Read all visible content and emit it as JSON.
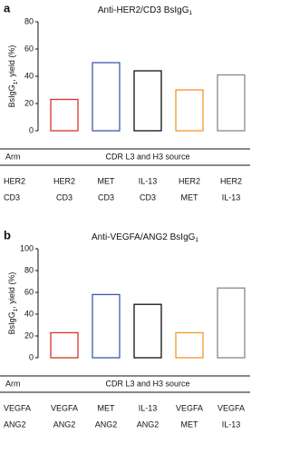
{
  "chart_data": [
    {
      "type": "bar",
      "panel": "a",
      "title": "Anti-HER2/CD3 BsIgG",
      "title_subscript": "1",
      "ylabel": "BsIgG",
      "ylabel_subscript": "1",
      "ylabel_suffix": ", yield (%)",
      "values": [
        23,
        50,
        44,
        30,
        41
      ],
      "colors": [
        "#d9342b",
        "#3a5aa8",
        "#111111",
        "#f0962e",
        "#888888"
      ],
      "ylim": [
        0,
        80
      ],
      "yticks": [
        0,
        20,
        40,
        60,
        80
      ],
      "table": {
        "header": [
          "Arm",
          "CDR L3 and H3 source"
        ],
        "rows": [
          [
            "HER2",
            "HER2",
            "MET",
            "IL-13",
            "HER2",
            "HER2"
          ],
          [
            "CD3",
            "CD3",
            "CD3",
            "CD3",
            "MET",
            "IL-13"
          ]
        ]
      }
    },
    {
      "type": "bar",
      "panel": "b",
      "title": "Anti-VEGFA/ANG2 BsIgG",
      "title_subscript": "1",
      "ylabel": "BsIgG",
      "ylabel_subscript": "1",
      "ylabel_suffix": ", yield (%)",
      "values": [
        23,
        58,
        49,
        23,
        64
      ],
      "colors": [
        "#d9342b",
        "#3a5aa8",
        "#111111",
        "#f0962e",
        "#888888"
      ],
      "ylim": [
        0,
        100
      ],
      "yticks": [
        0,
        20,
        40,
        60,
        80,
        100
      ],
      "table": {
        "header": [
          "Arm",
          "CDR L3 and H3 source"
        ],
        "rows": [
          [
            "VEGFA",
            "VEGFA",
            "MET",
            "IL-13",
            "VEGFA",
            "VEGFA"
          ],
          [
            "ANG2",
            "ANG2",
            "ANG2",
            "ANG2",
            "MET",
            "IL-13"
          ]
        ]
      }
    }
  ]
}
